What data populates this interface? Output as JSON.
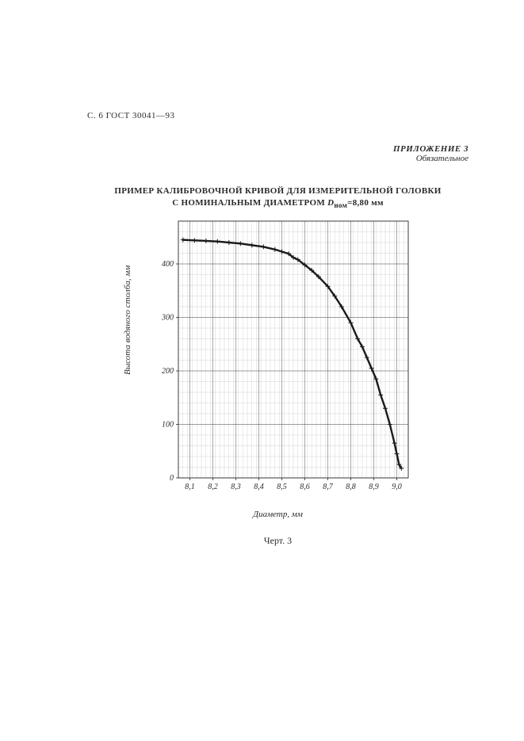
{
  "header": {
    "page_label": "С. 6  ГОСТ  30041—93"
  },
  "appendix": {
    "line1": "ПРИЛОЖЕНИЕ 3",
    "line2": "Обязательное"
  },
  "title": {
    "line1": "ПРИМЕР КАЛИБРОВОЧНОЙ КРИВОЙ ДЛЯ ИЗМЕРИТЕЛЬНОЙ ГОЛОВКИ",
    "line2_a": "С НОМИНАЛЬНЫМ ДИАМЕТРОМ ",
    "line2_sym": "D",
    "line2_sub": "ном",
    "line2_b": "=8,80 мм"
  },
  "chart": {
    "type": "line",
    "background_color": "#ffffff",
    "axis_color": "#2b2b2b",
    "grid_color": "#2b2b2b",
    "curve_color": "#1a1a1a",
    "marker": "+",
    "marker_size": 6,
    "line_width": 2.4,
    "grid_line_width": 0.4,
    "frame_line_width": 0.9,
    "ylabel": "Высота водяного столба, мм",
    "xlabel": "Диаметр, мм",
    "y": {
      "min": 0,
      "max": 480,
      "ticks": [
        0,
        100,
        200,
        300,
        400
      ],
      "tick_labels": [
        "0",
        "100",
        "200",
        "300",
        "400"
      ]
    },
    "x": {
      "min": 8.05,
      "max": 9.05,
      "ticks": [
        8.1,
        8.2,
        8.3,
        8.4,
        8.5,
        8.6,
        8.7,
        8.8,
        8.9,
        9.0
      ],
      "tick_labels": [
        "8,1",
        "8,2",
        "8,3",
        "8,4",
        "8,5",
        "8,6",
        "8,7",
        "8,8",
        "8,9",
        "9,0"
      ]
    },
    "points": [
      [
        8.07,
        445
      ],
      [
        8.12,
        444
      ],
      [
        8.17,
        443
      ],
      [
        8.22,
        442
      ],
      [
        8.27,
        440
      ],
      [
        8.32,
        438
      ],
      [
        8.37,
        435
      ],
      [
        8.42,
        432
      ],
      [
        8.47,
        427
      ],
      [
        8.5,
        423
      ],
      [
        8.53,
        419
      ],
      [
        8.55,
        412
      ],
      [
        8.57,
        408
      ],
      [
        8.6,
        398
      ],
      [
        8.63,
        388
      ],
      [
        8.66,
        376
      ],
      [
        8.7,
        358
      ],
      [
        8.73,
        340
      ],
      [
        8.76,
        320
      ],
      [
        8.8,
        290
      ],
      [
        8.83,
        260
      ],
      [
        8.85,
        245
      ],
      [
        8.87,
        225
      ],
      [
        8.89,
        205
      ],
      [
        8.91,
        185
      ],
      [
        8.93,
        155
      ],
      [
        8.95,
        130
      ],
      [
        8.97,
        100
      ],
      [
        8.99,
        65
      ],
      [
        9.0,
        45
      ],
      [
        9.01,
        25
      ],
      [
        9.02,
        18
      ]
    ],
    "caption": "Черт. 3",
    "tick_fontsize": 10
  }
}
